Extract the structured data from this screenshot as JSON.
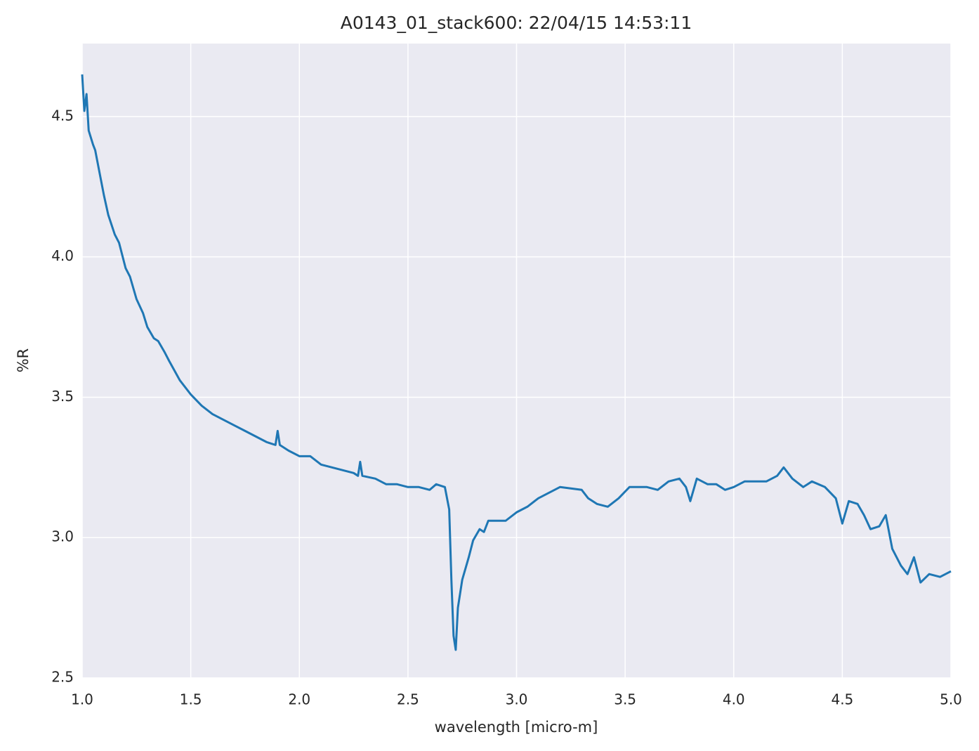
{
  "chart_data": {
    "type": "line",
    "title": "A0143_01_stack600:  22/04/15 14:53:11",
    "x_label": "wavelength [micro-m]",
    "y_label": "%R",
    "grid": true,
    "background": "#eaeaf2",
    "xlim": [
      1.0,
      5.0
    ],
    "ylim": [
      2.5,
      4.76
    ],
    "xticks": [
      {
        "value": 1,
        "label": "1.0"
      },
      1.5,
      {
        "value": 2,
        "label": "2.0"
      },
      2.5,
      {
        "value": 3,
        "label": "3.0"
      },
      3.5,
      {
        "value": 4,
        "label": "4.0"
      },
      4.5,
      {
        "value": 5,
        "label": "5.0"
      }
    ],
    "yticks": [
      2.5,
      {
        "value": 3,
        "label": "3.0"
      },
      3.5,
      {
        "value": 4,
        "label": "4.0"
      },
      4.5
    ],
    "x": [
      1.0,
      1.01,
      1.02,
      1.03,
      1.05,
      1.06,
      1.08,
      1.1,
      1.12,
      1.15,
      1.17,
      1.2,
      1.22,
      1.25,
      1.28,
      1.3,
      1.33,
      1.35,
      1.38,
      1.4,
      1.45,
      1.5,
      1.55,
      1.6,
      1.65,
      1.7,
      1.75,
      1.8,
      1.85,
      1.89,
      1.9,
      1.91,
      1.95,
      2.0,
      2.05,
      2.1,
      2.15,
      2.2,
      2.25,
      2.27,
      2.28,
      2.29,
      2.35,
      2.4,
      2.45,
      2.5,
      2.55,
      2.6,
      2.63,
      2.67,
      2.69,
      2.7,
      2.71,
      2.72,
      2.73,
      2.75,
      2.78,
      2.8,
      2.83,
      2.85,
      2.87,
      2.9,
      2.95,
      3.0,
      3.05,
      3.1,
      3.15,
      3.2,
      3.3,
      3.33,
      3.37,
      3.42,
      3.47,
      3.52,
      3.6,
      3.65,
      3.7,
      3.75,
      3.78,
      3.8,
      3.83,
      3.88,
      3.92,
      3.96,
      4.0,
      4.05,
      4.1,
      4.15,
      4.2,
      4.23,
      4.27,
      4.32,
      4.36,
      4.42,
      4.47,
      4.5,
      4.53,
      4.57,
      4.6,
      4.63,
      4.67,
      4.7,
      4.73,
      4.77,
      4.8,
      4.83,
      4.86,
      4.9,
      4.95,
      5.0
    ],
    "series": [
      {
        "color": "#1f77b4",
        "values": [
          4.65,
          4.52,
          4.58,
          4.45,
          4.4,
          4.38,
          4.3,
          4.22,
          4.15,
          4.08,
          4.05,
          3.96,
          3.93,
          3.85,
          3.8,
          3.75,
          3.71,
          3.7,
          3.66,
          3.63,
          3.56,
          3.51,
          3.47,
          3.44,
          3.42,
          3.4,
          3.38,
          3.36,
          3.34,
          3.33,
          3.38,
          3.33,
          3.31,
          3.29,
          3.29,
          3.26,
          3.25,
          3.24,
          3.23,
          3.22,
          3.27,
          3.22,
          3.21,
          3.19,
          3.19,
          3.18,
          3.18,
          3.17,
          3.19,
          3.18,
          3.1,
          2.85,
          2.65,
          2.6,
          2.75,
          2.85,
          2.93,
          2.99,
          3.03,
          3.02,
          3.06,
          3.06,
          3.06,
          3.09,
          3.11,
          3.14,
          3.16,
          3.18,
          3.17,
          3.14,
          3.12,
          3.11,
          3.14,
          3.18,
          3.18,
          3.17,
          3.2,
          3.21,
          3.18,
          3.13,
          3.21,
          3.19,
          3.19,
          3.17,
          3.18,
          3.2,
          3.2,
          3.2,
          3.22,
          3.25,
          3.21,
          3.18,
          3.2,
          3.18,
          3.14,
          3.05,
          3.13,
          3.12,
          3.08,
          3.03,
          3.04,
          3.08,
          2.96,
          2.9,
          2.87,
          2.93,
          2.84,
          2.87,
          2.86,
          2.88
        ]
      }
    ]
  }
}
